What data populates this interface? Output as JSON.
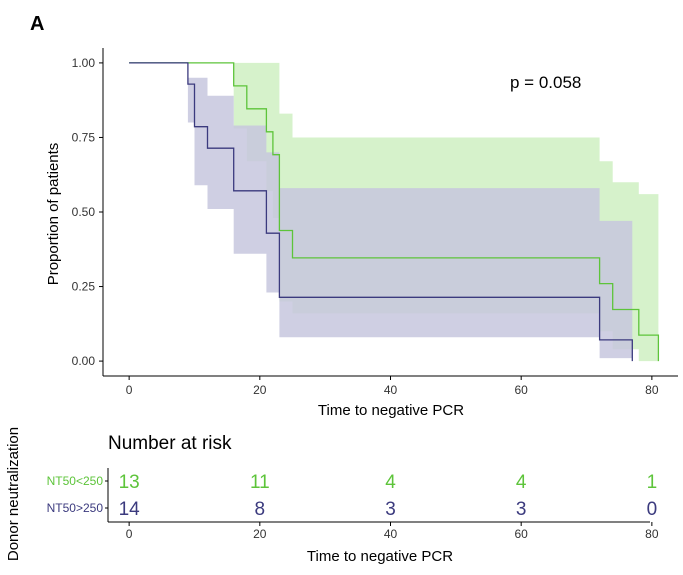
{
  "panel_label": "A",
  "colors": {
    "group_low": "#5dc43a",
    "group_high": "#3b3a7e",
    "group_low_band": "#d6f2cb",
    "group_high_band": "#c7c7de",
    "overlap_band": "#9eb5ab"
  },
  "chart_data": [
    {
      "type": "step",
      "subtype": "kaplan-meier",
      "title": "",
      "xlabel": "Time to negative PCR",
      "ylabel": "Proportion of patients",
      "xlim": [
        -4,
        84
      ],
      "ylim": [
        -0.05,
        1.05
      ],
      "x_ticks": [
        0,
        20,
        40,
        60,
        80
      ],
      "y_ticks": [
        0.0,
        0.25,
        0.5,
        0.75,
        1.0
      ],
      "y_tick_labels": [
        "0.00",
        "0.25",
        "0.50",
        "0.75",
        "1.00"
      ],
      "grid": false,
      "annotation": "p = 0.058",
      "series": [
        {
          "name": "NT50<250",
          "color": "#5dc43a",
          "band_color": "#d6f2cb",
          "x": [
            0,
            15,
            16,
            18,
            21,
            22,
            23,
            25,
            71,
            72,
            74,
            77,
            78,
            81
          ],
          "y": [
            1.0,
            1.0,
            0.923,
            0.846,
            0.769,
            0.692,
            0.438,
            0.346,
            0.346,
            0.26,
            0.173,
            0.173,
            0.087,
            0.0
          ],
          "lower": [
            1.0,
            1.0,
            0.78,
            0.67,
            0.57,
            0.48,
            0.2,
            0.16,
            0.16,
            0.1,
            0.04,
            0.04,
            0.0,
            0.0
          ],
          "upper": [
            1.0,
            1.0,
            1.0,
            1.0,
            1.0,
            1.0,
            0.83,
            0.75,
            0.75,
            0.67,
            0.6,
            0.6,
            0.56,
            0.56
          ]
        },
        {
          "name": "NT50>250",
          "color": "#3b3a7e",
          "band_color": "#c7c7de",
          "x": [
            0,
            6,
            9,
            10,
            12,
            16,
            21,
            23,
            71,
            72,
            77
          ],
          "y": [
            1.0,
            1.0,
            0.929,
            0.786,
            0.714,
            0.571,
            0.429,
            0.214,
            0.214,
            0.071,
            0.0
          ],
          "lower": [
            1.0,
            1.0,
            0.8,
            0.59,
            0.51,
            0.36,
            0.23,
            0.08,
            0.08,
            0.01,
            0.0
          ],
          "upper": [
            1.0,
            1.0,
            0.95,
            0.95,
            0.89,
            0.79,
            0.7,
            0.58,
            0.58,
            0.47,
            0.47
          ]
        }
      ]
    },
    {
      "type": "table",
      "title": "Number at risk",
      "xlabel": "Time to negative PCR",
      "ylabel": "Donor neutralization",
      "x_ticks": [
        0,
        20,
        40,
        60,
        80
      ],
      "rows": [
        {
          "name": "NT50<250",
          "color": "#5dc43a",
          "values": [
            13,
            11,
            4,
            4,
            1
          ]
        },
        {
          "name": "NT50>250",
          "color": "#3b3a7e",
          "values": [
            14,
            8,
            3,
            3,
            0
          ]
        }
      ]
    }
  ]
}
